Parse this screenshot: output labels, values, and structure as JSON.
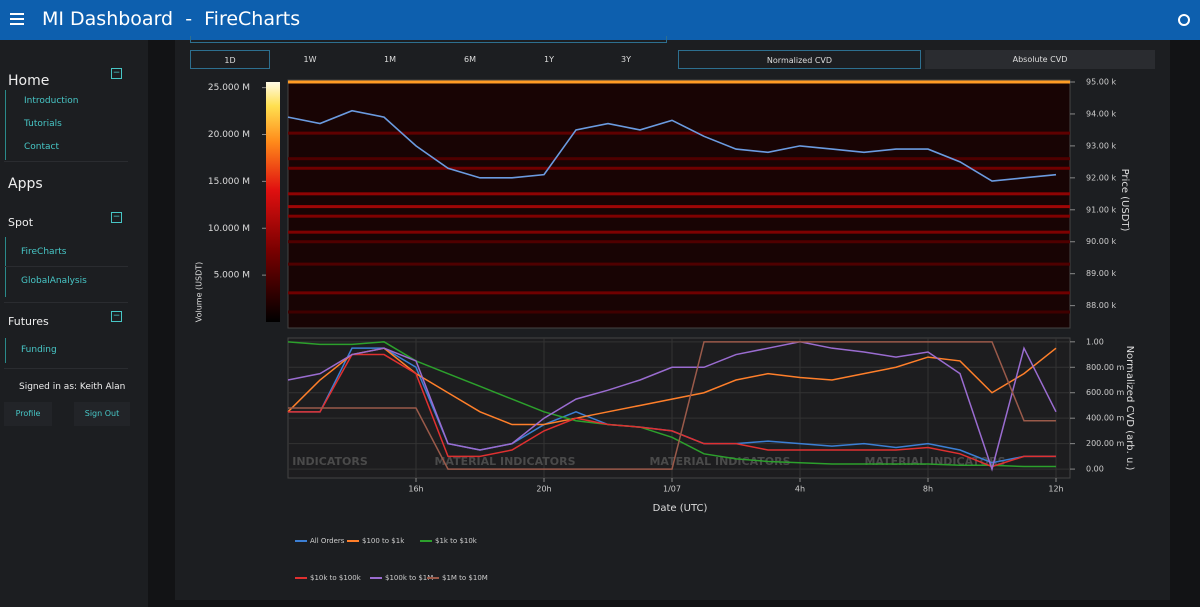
{
  "header": {
    "title": "MI Dashboard  -  FireCharts"
  },
  "sidebar": {
    "home": "Home",
    "home_links": [
      "Introduction",
      "Tutorials",
      "Contact"
    ],
    "apps": "Apps",
    "spot": "Spot",
    "spot_links": [
      "FireCharts",
      "GlobalAnalysis"
    ],
    "futures": "Futures",
    "futures_links": [
      "Funding"
    ],
    "signed_in": "Signed in as: Keith Alan",
    "profile": "Profile",
    "sign_out": "Sign Out"
  },
  "toolbar": {
    "ranges": [
      "1D",
      "1W",
      "1M",
      "6M",
      "1Y",
      "3Y"
    ],
    "modes": [
      "Normalized CVD",
      "Absolute CVD"
    ]
  },
  "chart_data": [
    {
      "type": "line",
      "ylabel": "Price (USDT)",
      "color": "#6b9be0",
      "values": [
        93900,
        93700,
        94100,
        93900,
        93000,
        92300,
        92000,
        92000,
        92100,
        93500,
        93700,
        93500,
        93800,
        93300,
        92900,
        92800,
        93000,
        92900,
        92800,
        92900,
        92900,
        92500,
        91900,
        92000,
        92100
      ],
      "ylim": [
        87300,
        95000
      ],
      "yticks": [
        {
          "value": 88000,
          "label": "88.00 k"
        },
        {
          "value": 89000,
          "label": "89.00 k"
        },
        {
          "value": 90000,
          "label": "90.00 k"
        },
        {
          "value": 91000,
          "label": "91.00 k"
        },
        {
          "value": 92000,
          "label": "92.00 k"
        },
        {
          "value": 93000,
          "label": "93.00 k"
        },
        {
          "value": 94000,
          "label": "94.00 k"
        },
        {
          "value": 95000,
          "label": "95.00 k"
        }
      ],
      "heatmap": {
        "prices": [
          95000,
          93400,
          92600,
          92300,
          91500,
          91100,
          90800,
          90300,
          90000,
          89300,
          88400,
          87800
        ],
        "volumes": [
          20000000,
          6000000,
          5000000,
          7000000,
          9000000,
          10000000,
          8000000,
          8000000,
          5000000,
          5000000,
          7000000,
          4000000
        ]
      },
      "colorbar": {
        "label": "Volume (USDT)",
        "lim": [
          0,
          25600000
        ],
        "ticks": [
          {
            "value": 5000000,
            "label": "5.000 M"
          },
          {
            "value": 10000000,
            "label": "10.000 M"
          },
          {
            "value": 15000000,
            "label": "15.000 M"
          },
          {
            "value": 20000000,
            "label": "20.000 M"
          },
          {
            "value": 25000000,
            "label": "25.000 M"
          }
        ]
      }
    },
    {
      "type": "line",
      "xlabel": "Date (UTC)",
      "ylabel": "Normalized CVD (arb. u.)",
      "categories": [
        null,
        null,
        null,
        null,
        "16h",
        null,
        null,
        null,
        "20h",
        null,
        null,
        null,
        "1/07",
        null,
        null,
        null,
        "4h",
        null,
        null,
        null,
        "8h",
        null,
        null,
        null,
        "12h"
      ],
      "ylim": [
        -0.07,
        1.03
      ],
      "yticks": [
        {
          "value": 0,
          "label": "0.00"
        },
        {
          "value": 0.2,
          "label": "200.00 m"
        },
        {
          "value": 0.4,
          "label": "400.00 m"
        },
        {
          "value": 0.6,
          "label": "600.00 m"
        },
        {
          "value": 0.8,
          "label": "800.00 m"
        },
        {
          "value": 1,
          "label": "1.00"
        }
      ],
      "grid": true,
      "watermarks": [
        "INDICATORS",
        "MATERIAL INDICATORS",
        "MATERIAL INDICATORS",
        "MATERIAL INDICATORS"
      ],
      "series": [
        {
          "name": "All Orders",
          "color": "#3c7fd4",
          "values": [
            0.45,
            0.45,
            0.95,
            0.95,
            0.8,
            0.2,
            0.15,
            0.2,
            0.35,
            0.45,
            0.35,
            0.33,
            0.3,
            0.2,
            0.2,
            0.22,
            0.2,
            0.18,
            0.2,
            0.17,
            0.2,
            0.15,
            0.05,
            0.1,
            0.1
          ]
        },
        {
          "name": "$100 to $1k",
          "color": "#ff7f2a",
          "values": [
            0.45,
            0.7,
            0.9,
            0.95,
            0.75,
            0.6,
            0.45,
            0.35,
            0.35,
            0.4,
            0.45,
            0.5,
            0.55,
            0.6,
            0.7,
            0.75,
            0.72,
            0.7,
            0.75,
            0.8,
            0.88,
            0.85,
            0.6,
            0.75,
            0.95
          ]
        },
        {
          "name": "$1k to $10k",
          "color": "#2ca02c",
          "values": [
            1.0,
            0.98,
            0.98,
            1.0,
            0.85,
            0.75,
            0.65,
            0.55,
            0.45,
            0.38,
            0.35,
            0.33,
            0.25,
            0.12,
            0.08,
            0.06,
            0.05,
            0.04,
            0.04,
            0.04,
            0.04,
            0.03,
            0.03,
            0.02,
            0.02
          ]
        },
        {
          "name": "$10k to $100k",
          "color": "#e03030",
          "values": [
            0.45,
            0.45,
            0.9,
            0.9,
            0.75,
            0.1,
            0.1,
            0.15,
            0.3,
            0.4,
            0.35,
            0.33,
            0.3,
            0.2,
            0.2,
            0.15,
            0.15,
            0.15,
            0.15,
            0.15,
            0.17,
            0.12,
            0.02,
            0.1,
            0.1
          ]
        },
        {
          "name": "$100k to $1M",
          "color": "#9a6cd0",
          "values": [
            0.7,
            0.75,
            0.9,
            0.95,
            0.85,
            0.2,
            0.15,
            0.2,
            0.4,
            0.55,
            0.62,
            0.7,
            0.8,
            0.8,
            0.9,
            0.95,
            1.0,
            0.95,
            0.92,
            0.88,
            0.92,
            0.75,
            0.0,
            0.95,
            0.45
          ]
        },
        {
          "name": "$1M to $10M",
          "color": "#9a5a4a",
          "values": [
            0.48,
            0.48,
            0.48,
            0.48,
            0.48,
            0.0,
            0.0,
            0.0,
            0.0,
            0.0,
            0.0,
            0.0,
            0.0,
            1.0,
            1.0,
            1.0,
            1.0,
            1.0,
            1.0,
            1.0,
            1.0,
            1.0,
            1.0,
            0.38,
            0.38
          ]
        }
      ]
    }
  ]
}
